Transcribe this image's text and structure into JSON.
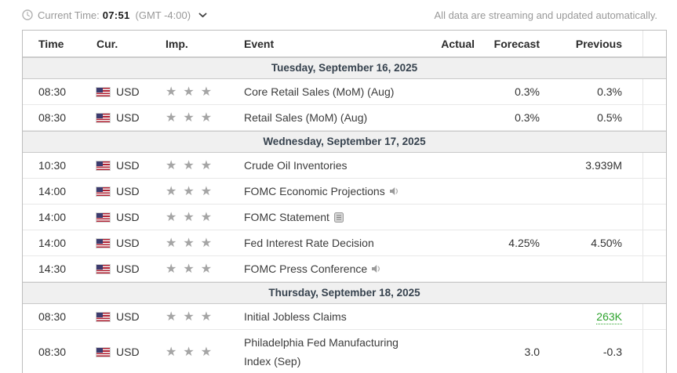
{
  "topbar": {
    "current_time_label": "Current Time:",
    "current_time_value": "07:51",
    "timezone": "(GMT -4:00)",
    "streaming_note": "All data are streaming and updated automatically."
  },
  "table": {
    "columns": [
      "Time",
      "Cur.",
      "Imp.",
      "Event",
      "Actual",
      "Forecast",
      "Previous"
    ],
    "sections": [
      {
        "date": "Tuesday, September 16, 2025",
        "rows": [
          {
            "time": "08:30",
            "currency": "USD",
            "importance": 3,
            "event": "Core Retail Sales (MoM) (Aug)",
            "icon": "",
            "actual": "",
            "forecast": "0.3%",
            "previous": "0.3%",
            "previous_style": ""
          },
          {
            "time": "08:30",
            "currency": "USD",
            "importance": 3,
            "event": "Retail Sales (MoM) (Aug)",
            "icon": "",
            "actual": "",
            "forecast": "0.3%",
            "previous": "0.5%",
            "previous_style": ""
          }
        ]
      },
      {
        "date": "Wednesday, September 17, 2025",
        "rows": [
          {
            "time": "10:30",
            "currency": "USD",
            "importance": 3,
            "event": "Crude Oil Inventories",
            "icon": "",
            "actual": "",
            "forecast": "",
            "previous": "3.939M",
            "previous_style": ""
          },
          {
            "time": "14:00",
            "currency": "USD",
            "importance": 3,
            "event": "FOMC Economic Projections",
            "icon": "speaker",
            "actual": "",
            "forecast": "",
            "previous": "",
            "previous_style": ""
          },
          {
            "time": "14:00",
            "currency": "USD",
            "importance": 3,
            "event": "FOMC Statement",
            "icon": "report",
            "actual": "",
            "forecast": "",
            "previous": "",
            "previous_style": ""
          },
          {
            "time": "14:00",
            "currency": "USD",
            "importance": 3,
            "event": "Fed Interest Rate Decision",
            "icon": "",
            "actual": "",
            "forecast": "4.25%",
            "previous": "4.50%",
            "previous_style": ""
          },
          {
            "time": "14:30",
            "currency": "USD",
            "importance": 3,
            "event": "FOMC Press Conference",
            "icon": "speaker",
            "actual": "",
            "forecast": "",
            "previous": "",
            "previous_style": ""
          }
        ]
      },
      {
        "date": "Thursday, September 18, 2025",
        "rows": [
          {
            "time": "08:30",
            "currency": "USD",
            "importance": 3,
            "event": "Initial Jobless Claims",
            "icon": "",
            "actual": "",
            "forecast": "",
            "previous": "263K",
            "previous_style": "positive"
          },
          {
            "time": "08:30",
            "currency": "USD",
            "importance": 3,
            "event": "Philadelphia Fed Manufacturing Index (Sep)",
            "icon": "",
            "actual": "",
            "forecast": "3.0",
            "previous": "-0.3",
            "previous_style": ""
          }
        ]
      }
    ]
  },
  "icons": {
    "clock": "clock-icon",
    "chevron": "chevron-down-icon",
    "flag": "us-flag-icon",
    "importance": "star-icon",
    "speaker": "speaker-icon",
    "report": "report-icon"
  },
  "colors": {
    "positive_value": "#2da32d",
    "day_header_bg": "#f0f0f0",
    "day_header_text": "#36424e",
    "muted_text": "#999999",
    "body_text": "#333333",
    "star": "#a5a5a5",
    "table_border": "#bdbdbd"
  }
}
